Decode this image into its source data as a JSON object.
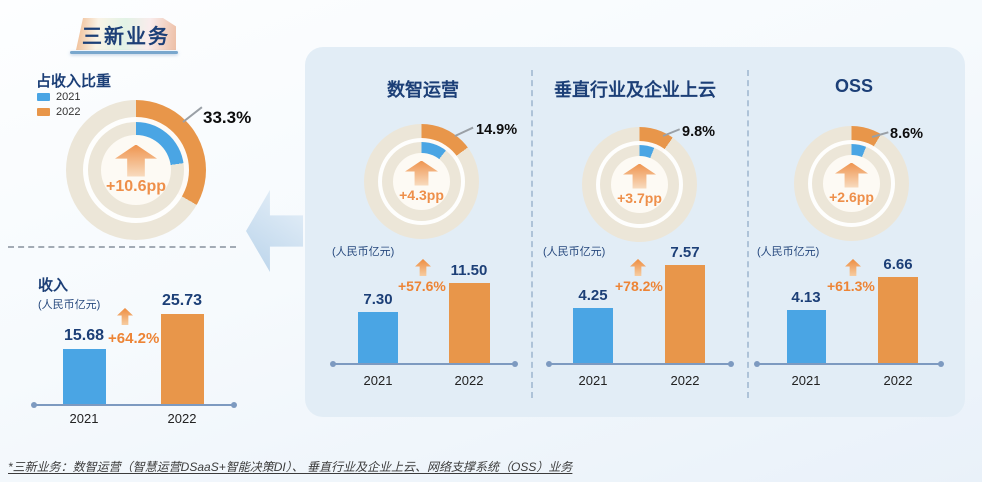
{
  "header": {
    "title": "三新业务"
  },
  "legend": {
    "items": [
      {
        "label": "2021",
        "color": "#4AA5E4"
      },
      {
        "label": "2022",
        "color": "#E8964A"
      }
    ]
  },
  "footnote": "*三新业务：数智运营（智慧运营DSaaS+智能决策DI）、 垂直行业及企业上云、网络支撑系统（OSS）业务",
  "colors": {
    "blue": "#4AA5E4",
    "orange": "#E8964A",
    "ring": "#ECE6D8",
    "navy": "#1C3F77",
    "growth": "#ED8435",
    "delta": "#EE8F4A",
    "panel": "#E2EDF6"
  },
  "chart_data": [
    {
      "type": "donut",
      "title": "占收入比重",
      "series": [
        {
          "name": "2021",
          "value": 22.7
        },
        {
          "name": "2022",
          "value": 33.3
        }
      ],
      "callout": "33.3%",
      "delta": "+10.6pp"
    },
    {
      "type": "bar",
      "title": "收入",
      "ylabel": "(人民币亿元)",
      "categories": [
        "2021",
        "2022"
      ],
      "values": [
        15.68,
        25.73
      ],
      "value_labels": [
        "15.68",
        "25.73"
      ],
      "growth": "+64.2%"
    },
    {
      "type": "donut",
      "title": "数智运营",
      "series": [
        {
          "name": "2021",
          "value": 10.6
        },
        {
          "name": "2022",
          "value": 14.9
        }
      ],
      "callout": "14.9%",
      "delta": "+4.3pp"
    },
    {
      "type": "bar",
      "ylabel": "(人民币亿元)",
      "categories": [
        "2021",
        "2022"
      ],
      "values": [
        7.3,
        11.5
      ],
      "value_labels": [
        "7.30",
        "11.50"
      ],
      "growth": "+57.6%"
    },
    {
      "type": "donut",
      "title": "垂直行业及企业上云",
      "series": [
        {
          "name": "2021",
          "value": 6.1
        },
        {
          "name": "2022",
          "value": 9.8
        }
      ],
      "callout": "9.8%",
      "delta": "+3.7pp"
    },
    {
      "type": "bar",
      "ylabel": "(人民币亿元)",
      "categories": [
        "2021",
        "2022"
      ],
      "values": [
        4.25,
        7.57
      ],
      "value_labels": [
        "4.25",
        "7.57"
      ],
      "growth": "+78.2%"
    },
    {
      "type": "donut",
      "title": "OSS",
      "series": [
        {
          "name": "2021",
          "value": 6.0
        },
        {
          "name": "2022",
          "value": 8.6
        }
      ],
      "callout": "8.6%",
      "delta": "+2.6pp"
    },
    {
      "type": "bar",
      "ylabel": "(人民币亿元)",
      "categories": [
        "2021",
        "2022"
      ],
      "values": [
        4.13,
        6.66
      ],
      "value_labels": [
        "4.13",
        "6.66"
      ],
      "growth": "+61.3%"
    }
  ]
}
